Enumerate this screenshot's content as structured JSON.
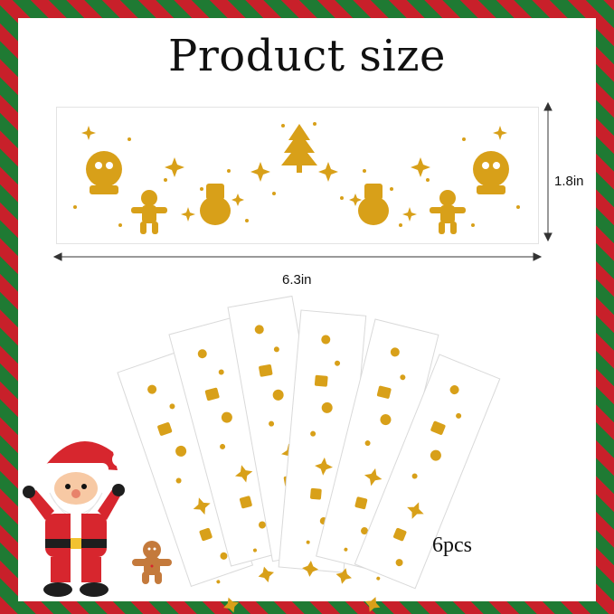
{
  "title": "Product size",
  "dimensions": {
    "height": "1.8in",
    "width": "6.3in"
  },
  "count": "6pcs",
  "colors": {
    "gold": "#d8a019",
    "border_red": "#c8202a",
    "border_green": "#1f7a33",
    "santa_red": "#d7262e"
  },
  "decor_icons": [
    "snow-globe-icon",
    "gingerbread-man-icon",
    "gift-sack-icon",
    "christmas-tree-icon",
    "sparkle-icon",
    "bell-icon",
    "snowflake-icon",
    "candy-cane-icon"
  ]
}
